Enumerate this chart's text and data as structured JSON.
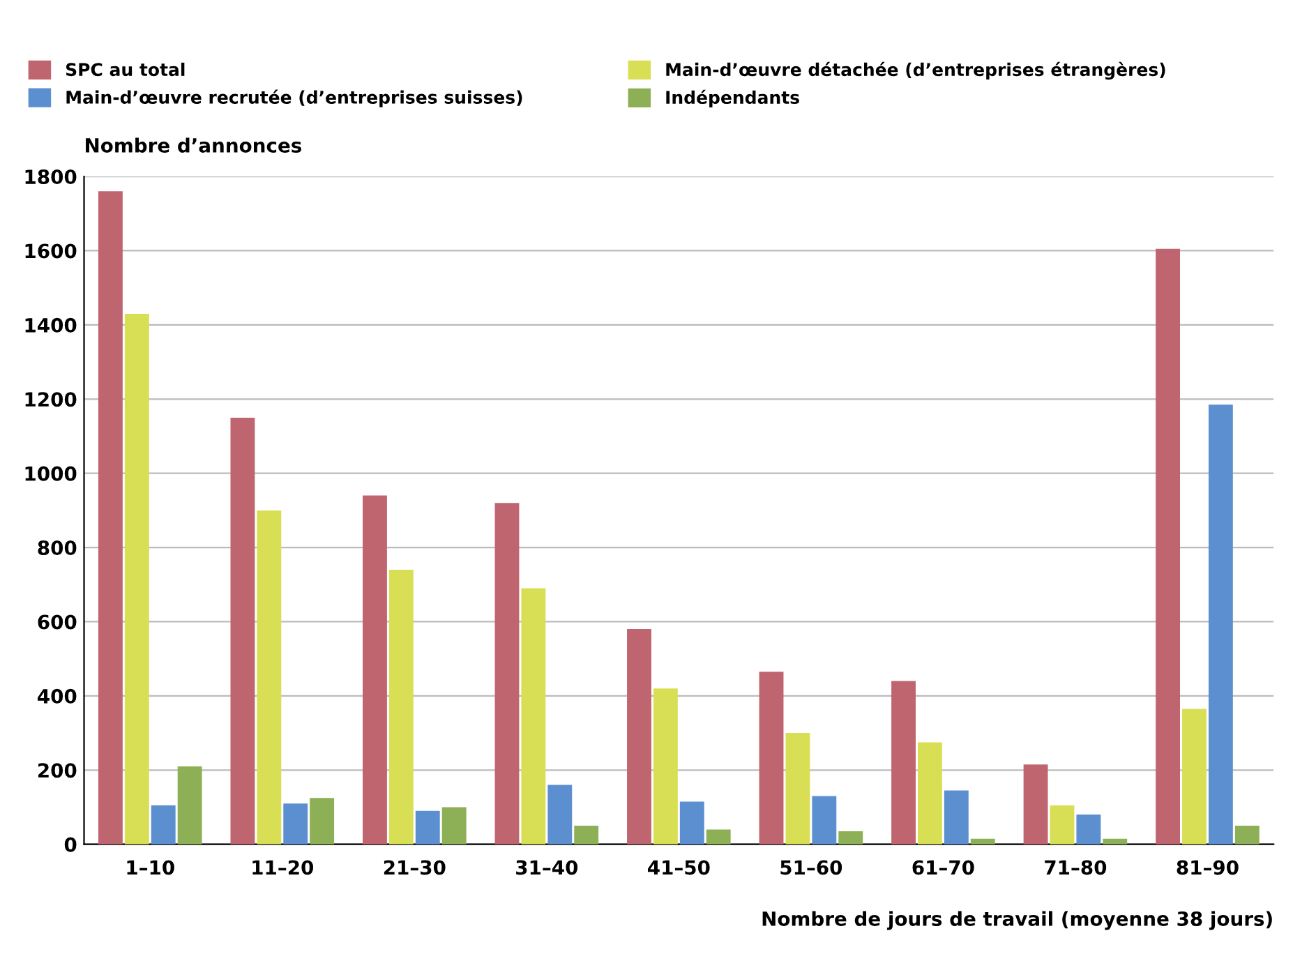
{
  "chart_data": {
    "type": "bar",
    "ylabel": "Nombre d’annonces",
    "xlabel": "Nombre de jours de travail (moyenne 38 jours)",
    "categories": [
      "1–10",
      "11–20",
      "21–30",
      "31–40",
      "41–50",
      "51–60",
      "61–70",
      "71–80",
      "81–90"
    ],
    "series": [
      {
        "name": "SPC au total",
        "color": "#bf6570",
        "values": [
          1760,
          1150,
          940,
          920,
          580,
          465,
          440,
          215,
          1605
        ]
      },
      {
        "name": "Main-d’œuvre détachée (d’entreprises étrangères)",
        "color": "#d9df55",
        "values": [
          1430,
          900,
          740,
          690,
          420,
          300,
          275,
          105,
          365
        ]
      },
      {
        "name": "Main-d’œuvre recrutée (d’entreprises suisses)",
        "color": "#5b8fd0",
        "values": [
          105,
          110,
          90,
          160,
          115,
          130,
          145,
          80,
          1185
        ]
      },
      {
        "name": "Indépendants",
        "color": "#8db056",
        "values": [
          210,
          125,
          100,
          50,
          40,
          35,
          15,
          15,
          50
        ]
      }
    ],
    "ylim": [
      0,
      1800
    ],
    "yticks": [
      0,
      200,
      400,
      600,
      800,
      1000,
      1200,
      1400,
      1600,
      1800
    ],
    "grid": "y",
    "legend": "top"
  }
}
